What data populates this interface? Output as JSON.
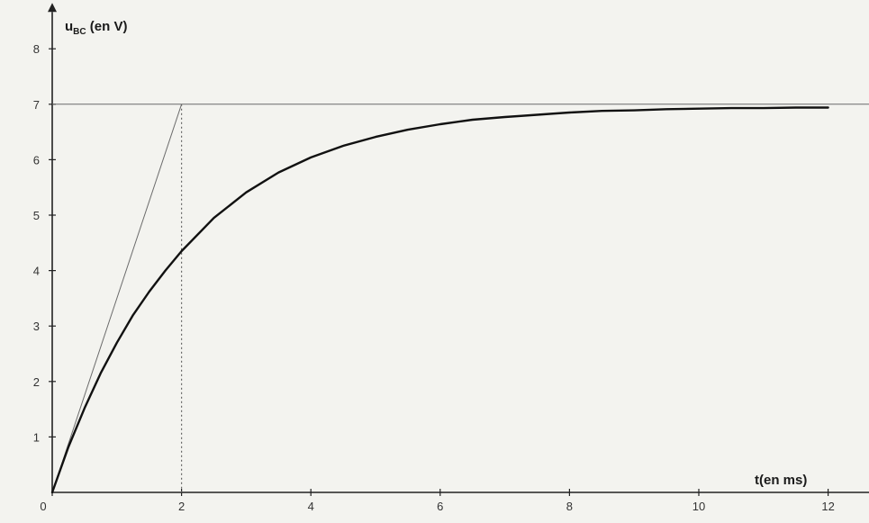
{
  "chart_data": {
    "type": "line",
    "title": "",
    "xlabel": "t(en ms)",
    "ylabel": "u",
    "ylabel_subscript": "BC",
    "ylabel_suffix": " (en V)",
    "xlim": [
      0,
      12.6
    ],
    "ylim": [
      0,
      8.6
    ],
    "x_ticks": [
      "0",
      "2",
      "4",
      "6",
      "8",
      "10",
      "12"
    ],
    "y_ticks": [
      "1",
      "2",
      "3",
      "4",
      "5",
      "6",
      "7",
      "8"
    ],
    "grid": false,
    "series": [
      {
        "x": [
          0,
          0.25,
          0.5,
          0.75,
          1,
          1.25,
          1.5,
          1.75,
          2,
          2.5,
          3,
          3.5,
          4,
          4.5,
          5,
          5.5,
          6,
          6.5,
          7,
          7.5,
          8,
          8.5,
          9,
          9.5,
          10,
          10.5,
          11,
          11.5,
          12
        ],
        "values": [
          0,
          0.82,
          1.52,
          2.15,
          2.7,
          3.2,
          3.62,
          4.0,
          4.35,
          4.95,
          5.41,
          5.77,
          6.04,
          6.25,
          6.41,
          6.54,
          6.64,
          6.72,
          6.77,
          6.81,
          6.85,
          6.88,
          6.89,
          6.91,
          6.92,
          6.93,
          6.93,
          6.94,
          6.94
        ]
      }
    ],
    "asymptote": {
      "y": 7
    },
    "tangent_at_origin": {
      "x": [
        0,
        2
      ],
      "y": [
        0,
        7
      ]
    },
    "time_constant_marker": {
      "x": 2
    }
  }
}
